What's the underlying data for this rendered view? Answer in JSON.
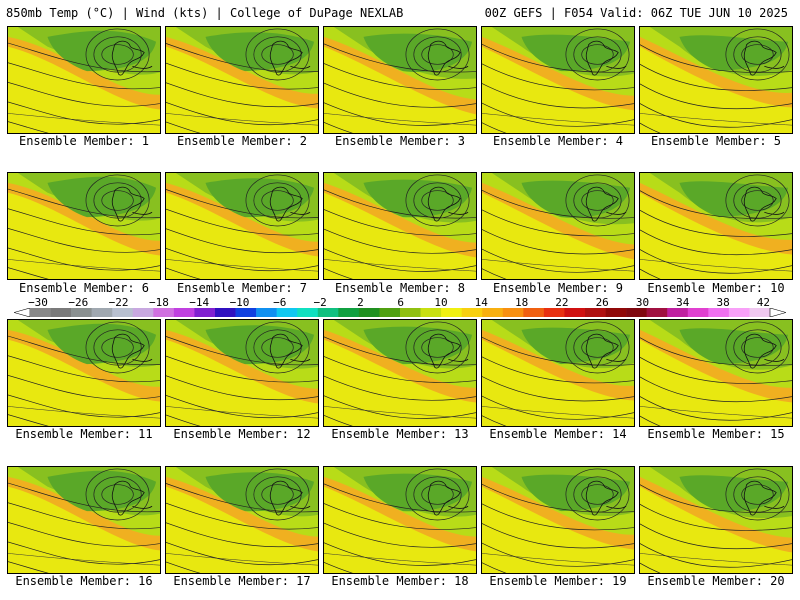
{
  "header": {
    "title": "850mb Temp (°C) | Wind (kts) | College of DuPage NEXLAB",
    "run_info": "00Z GEFS | F054 Valid: 06Z TUE JUN 10 2025"
  },
  "colorbar": {
    "tick_labels": [
      "−30",
      "−26",
      "−22",
      "−18",
      "−14",
      "−10",
      "−6",
      "−2",
      "2",
      "6",
      "10",
      "14",
      "18",
      "22",
      "26",
      "30",
      "34",
      "38",
      "42"
    ],
    "colors": [
      "#888888",
      "#7a7a7a",
      "#8a9090",
      "#a0a8b0",
      "#b8c0d0",
      "#c8a8e0",
      "#d070e0",
      "#c040e0",
      "#8020d0",
      "#3010c0",
      "#1040e0",
      "#1090f0",
      "#10c8f0",
      "#10e0c0",
      "#10c080",
      "#10a040",
      "#209020",
      "#50a010",
      "#90c010",
      "#c8e010",
      "#f0f010",
      "#f8d010",
      "#f8b010",
      "#f89010",
      "#f06010",
      "#e83010",
      "#d01010",
      "#b01010",
      "#900808",
      "#800810",
      "#a01040",
      "#c020a0",
      "#e040d0",
      "#f070f0",
      "#f8a0f8",
      "#f0c8f0"
    ]
  },
  "members": [
    {
      "label": "Ensemble Member: 1",
      "warm": 0.55
    },
    {
      "label": "Ensemble Member: 2",
      "warm": 0.6
    },
    {
      "label": "Ensemble Member: 3",
      "warm": 0.3
    },
    {
      "label": "Ensemble Member: 4",
      "warm": 0.5
    },
    {
      "label": "Ensemble Member: 5",
      "warm": 0.65
    },
    {
      "label": "Ensemble Member: 6",
      "warm": 0.55
    },
    {
      "label": "Ensemble Member: 7",
      "warm": 0.5
    },
    {
      "label": "Ensemble Member: 8",
      "warm": 0.45
    },
    {
      "label": "Ensemble Member: 9",
      "warm": 0.35
    },
    {
      "label": "Ensemble Member: 10",
      "warm": 0.6
    },
    {
      "label": "Ensemble Member: 11",
      "warm": 0.6
    },
    {
      "label": "Ensemble Member: 12",
      "warm": 0.5
    },
    {
      "label": "Ensemble Member: 13",
      "warm": 0.55
    },
    {
      "label": "Ensemble Member: 14",
      "warm": 0.65
    },
    {
      "label": "Ensemble Member: 15",
      "warm": 0.55
    },
    {
      "label": "Ensemble Member: 16",
      "warm": 0.5
    },
    {
      "label": "Ensemble Member: 17",
      "warm": 0.45
    },
    {
      "label": "Ensemble Member: 18",
      "warm": 0.45
    },
    {
      "label": "Ensemble Member: 19",
      "warm": 0.55
    },
    {
      "label": "Ensemble Member: 20",
      "warm": 0.4
    }
  ]
}
